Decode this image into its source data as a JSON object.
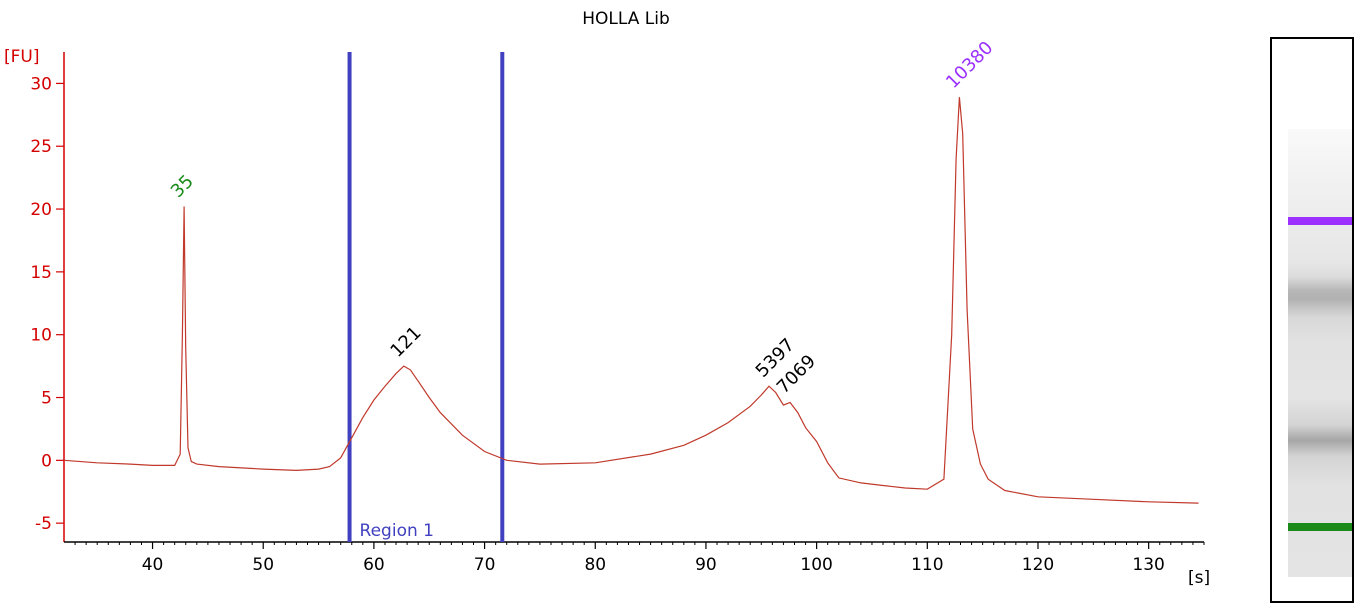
{
  "chart_data": {
    "type": "line",
    "title": "HOLLA Lib",
    "ylabel": "[FU]",
    "xlabel": "[s]",
    "xlim": [
      32,
      135
    ],
    "ylim": [
      -6.5,
      32.5
    ],
    "x_ticks": [
      40,
      50,
      60,
      70,
      80,
      90,
      100,
      110,
      120,
      130
    ],
    "y_ticks": [
      -5,
      0,
      5,
      10,
      15,
      20,
      25,
      30
    ],
    "grid": false,
    "series": [
      {
        "color": "#c0392b",
        "x": [
          32,
          35,
          38,
          40,
          42,
          42.5,
          42.7,
          42.85,
          43.0,
          43.2,
          43.5,
          44,
          46,
          50,
          53,
          55,
          56,
          57,
          58,
          59,
          60,
          61,
          62,
          62.7,
          63.3,
          64,
          65,
          66,
          68,
          70,
          72,
          75,
          80,
          85,
          88,
          90,
          92,
          94,
          95,
          95.7,
          96.3,
          97.0,
          97.6,
          98.3,
          99,
          100,
          101,
          102,
          104,
          106,
          108,
          110,
          111.5,
          112.2,
          112.6,
          112.9,
          113.2,
          113.6,
          114.1,
          114.8,
          115.5,
          117,
          120,
          125,
          130,
          134.5
        ],
        "y": [
          0.0,
          -0.2,
          -0.3,
          -0.4,
          -0.4,
          0.5,
          10.0,
          20.2,
          9.0,
          1.0,
          -0.1,
          -0.3,
          -0.5,
          -0.7,
          -0.8,
          -0.7,
          -0.5,
          0.2,
          1.8,
          3.4,
          4.8,
          5.9,
          6.9,
          7.5,
          7.2,
          6.3,
          5.0,
          3.8,
          2.0,
          0.7,
          0.0,
          -0.3,
          -0.2,
          0.5,
          1.2,
          2.0,
          3.0,
          4.3,
          5.2,
          5.9,
          5.4,
          4.4,
          4.6,
          3.8,
          2.6,
          1.5,
          -0.2,
          -1.4,
          -1.8,
          -2.0,
          -2.2,
          -2.3,
          -1.5,
          10.0,
          24.0,
          28.9,
          26.0,
          12.0,
          2.5,
          -0.3,
          -1.5,
          -2.4,
          -2.9,
          -3.1,
          -3.3,
          -3.4
        ]
      }
    ],
    "peaks": [
      {
        "label": "35",
        "x": 42.85,
        "y": 20.2,
        "color": "#1a8a1a"
      },
      {
        "label": "121",
        "x": 62.7,
        "y": 7.5,
        "color": "#000000"
      },
      {
        "label": "5397",
        "x": 95.7,
        "y": 5.9,
        "color": "#000000"
      },
      {
        "label": "7069",
        "x": 97.6,
        "y": 4.6,
        "color": "#000000"
      },
      {
        "label": "10380",
        "x": 112.9,
        "y": 28.9,
        "color": "#9b30ff"
      }
    ],
    "region": {
      "label": "Region 1",
      "x_start": 57.8,
      "x_end": 71.6,
      "color": "#4040c0"
    }
  },
  "gel": {
    "upper_marker_color": "#9b30ff",
    "lower_marker_color": "#1a8a1a"
  }
}
